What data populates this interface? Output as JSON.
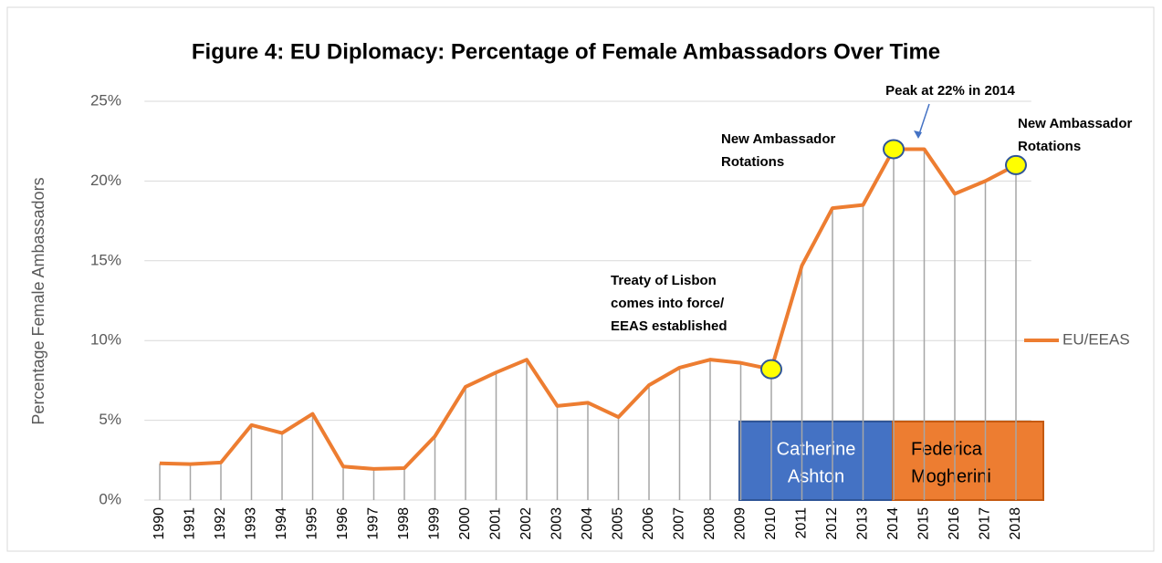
{
  "chart_data": {
    "type": "line",
    "title": "Figure 4: EU Diplomacy: Percentage of Female Ambassadors Over Time",
    "y_label": "Percentage Female Ambassadors",
    "categories": [
      "1990",
      "1991",
      "1992",
      "1993",
      "1994",
      "1995",
      "1996",
      "1997",
      "1998",
      "1999",
      "2000",
      "2001",
      "2002",
      "2003",
      "2004",
      "2005",
      "2006",
      "2007",
      "2008",
      "2009",
      "2010",
      "2011",
      "2012",
      "2013",
      "2014",
      "2015",
      "2016",
      "2017",
      "2018"
    ],
    "series": [
      {
        "name": "EU/EEAS",
        "color": "#ed7d31",
        "values": [
          2.3,
          2.25,
          2.35,
          4.7,
          4.2,
          5.4,
          2.1,
          1.95,
          2.0,
          4.0,
          7.1,
          8.0,
          8.8,
          5.9,
          6.1,
          5.2,
          7.2,
          8.3,
          8.8,
          8.6,
          8.2,
          14.7,
          18.3,
          18.5,
          22.0,
          22.0,
          19.2,
          20.0,
          21.0
        ]
      }
    ],
    "ylim": [
      0,
      25
    ],
    "yticks": [
      {
        "value": 0,
        "label": "0%"
      },
      {
        "value": 5,
        "label": "5%"
      },
      {
        "value": 10,
        "label": "10%"
      },
      {
        "value": 15,
        "label": "15%"
      },
      {
        "value": 20,
        "label": "20%"
      },
      {
        "value": 25,
        "label": "25%"
      }
    ],
    "grid": true,
    "drop_lines": true,
    "legend": "right",
    "markers": {
      "color": "#ffff00",
      "categories": [
        "2010",
        "2014",
        "2018"
      ]
    },
    "annotations": [
      {
        "lines": [
          "Treaty of Lisbon",
          "comes into force/",
          "EEAS established"
        ]
      },
      {
        "lines": [
          "New Ambassador",
          "Rotations"
        ]
      },
      {
        "lines": [
          "Peak at 22% in 2014"
        ]
      },
      {
        "lines": [
          "New Ambassador",
          "Rotations"
        ]
      }
    ],
    "periods": [
      {
        "lines": [
          "Catherine",
          "Ashton"
        ],
        "color": "#4472c4"
      },
      {
        "lines": [
          "Federica",
          "Mogherini"
        ],
        "color": "#ed7d31"
      }
    ]
  }
}
